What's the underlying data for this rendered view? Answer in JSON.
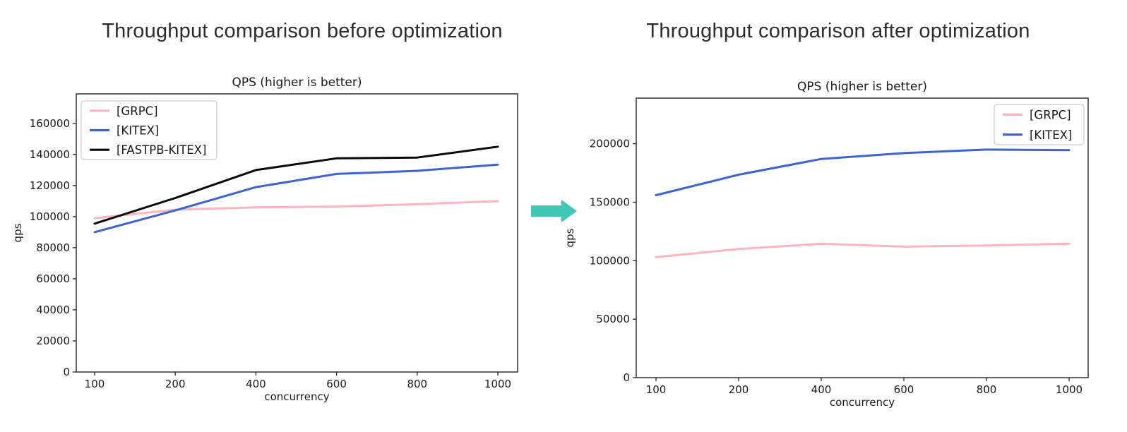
{
  "page": {
    "left_title": "Throughput comparison before optimization",
    "right_title": "Throughput comparison after optimization",
    "arrow": {
      "icon": "right-arrow",
      "color": "#41c7b6"
    }
  },
  "chart_data": [
    {
      "type": "line",
      "title": "QPS (higher is better)",
      "xlabel": "concurrency",
      "ylabel": "qps",
      "categories": [
        100,
        200,
        400,
        600,
        800,
        1000
      ],
      "series": [
        {
          "name": "[GRPC]",
          "color": "#ffb3c1",
          "values": [
            99000,
            104500,
            106000,
            106500,
            108000,
            110000
          ]
        },
        {
          "name": "[KITEX]",
          "color": "#3c63d4",
          "values": [
            90000,
            104000,
            119000,
            127500,
            129500,
            133500
          ]
        },
        {
          "name": "[FASTPB-KITEX]",
          "color": "#0a0a0a",
          "values": [
            95500,
            112000,
            130000,
            137500,
            138000,
            145000
          ]
        }
      ],
      "yticks": [
        0,
        20000,
        40000,
        60000,
        80000,
        100000,
        120000,
        140000,
        160000
      ],
      "ylim": [
        0,
        179000
      ],
      "grid": false,
      "legend_position": "upper-left"
    },
    {
      "type": "line",
      "title": "QPS (higher is better)",
      "xlabel": "concurrency",
      "ylabel": "qps",
      "categories": [
        100,
        200,
        400,
        600,
        800,
        1000
      ],
      "series": [
        {
          "name": "[GRPC]",
          "color": "#ffb3c1",
          "values": [
            103000,
            110000,
            114500,
            112000,
            113000,
            114500
          ]
        },
        {
          "name": "[KITEX]",
          "color": "#3c63d4",
          "values": [
            156000,
            173500,
            187000,
            192000,
            195000,
            194500
          ]
        }
      ],
      "yticks": [
        0,
        50000,
        100000,
        150000,
        200000
      ],
      "ylim": [
        0,
        239000
      ],
      "grid": false,
      "legend_position": "upper-right"
    }
  ]
}
